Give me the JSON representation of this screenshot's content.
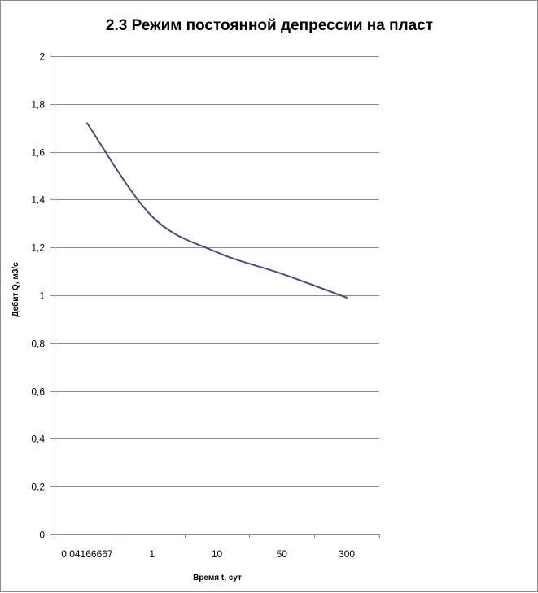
{
  "chart_data": {
    "type": "line",
    "title": "2.3 Режим постоянной депрессии на пласт",
    "xlabel": "Время t, сут",
    "ylabel": "Дебит Q, м3/с",
    "categories": [
      "0,04166667",
      "1",
      "10",
      "50",
      "300"
    ],
    "y_tick_labels": [
      "0",
      "0,2",
      "0,4",
      "0,6",
      "0,8",
      "1",
      "1,2",
      "1,4",
      "1,6",
      "1,8",
      "2"
    ],
    "ylim": [
      0,
      2
    ],
    "y_step": 0.2,
    "grid": true,
    "legend": "none",
    "series": [
      {
        "values": [
          1.72,
          1.33,
          1.18,
          1.09,
          0.99
        ],
        "color": "#4a4a8a"
      }
    ]
  }
}
